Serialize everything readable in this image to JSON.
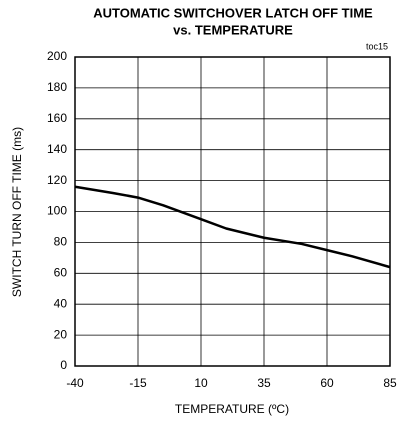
{
  "chart_data": {
    "type": "line",
    "title": [
      "AUTOMATIC SWITCHOVER LATCH OFF TIME",
      "vs. TEMPERATURE"
    ],
    "annotation": "toc15",
    "x_label": "TEMPERATURE (ºC)",
    "y_label": "SWITCH TURN OFF TIME (ms)",
    "x": [
      -40,
      -25,
      -15,
      -5,
      10,
      20,
      35,
      50,
      60,
      70,
      85
    ],
    "series": [
      {
        "name": "latch off time",
        "color": "#000000",
        "values": [
          116,
          112,
          109,
          104,
          95,
          89,
          83,
          79,
          75,
          71,
          64
        ]
      }
    ],
    "xlim": [
      -40,
      85
    ],
    "xticks": [
      -40,
      -15,
      10,
      35,
      60,
      85
    ],
    "ylim": [
      0,
      200
    ],
    "yticks": [
      0,
      20,
      40,
      60,
      80,
      100,
      120,
      140,
      160,
      180,
      200
    ],
    "grid": true
  }
}
